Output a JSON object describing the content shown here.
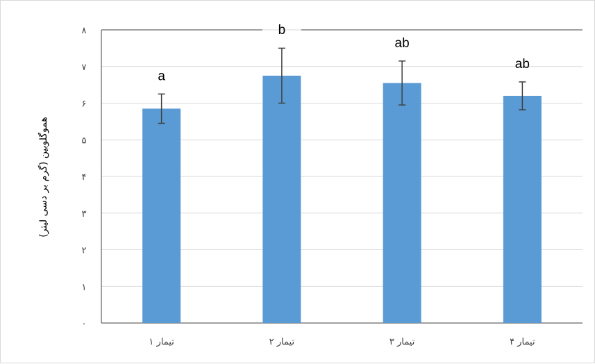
{
  "chart_data": {
    "type": "bar",
    "categories": [
      "تیمار ۱",
      "تیمار ۲",
      "تیمار ۳",
      "تیمار ۴"
    ],
    "values": [
      5.85,
      6.75,
      6.55,
      6.2
    ],
    "error": [
      0.4,
      0.75,
      0.6,
      0.38
    ],
    "significance_letters": [
      "a",
      "b",
      "ab",
      "ab"
    ],
    "ylabel": "هموگلوبین (گرم بر دسی لیتر)",
    "xlabel": "",
    "ylim": [
      0,
      8
    ],
    "yticks": [
      0,
      1,
      2,
      3,
      4,
      5,
      6,
      7,
      8
    ],
    "ytick_labels": [
      "۰",
      "۱",
      "۲",
      "۳",
      "۴",
      "۵",
      "۶",
      "۷",
      "۸"
    ],
    "grid": true,
    "legend": "none",
    "colors": {
      "bar": "#5b9bd5",
      "error_bar": "#404040",
      "grid": "#d9d9d9",
      "axis": "#404040"
    }
  }
}
